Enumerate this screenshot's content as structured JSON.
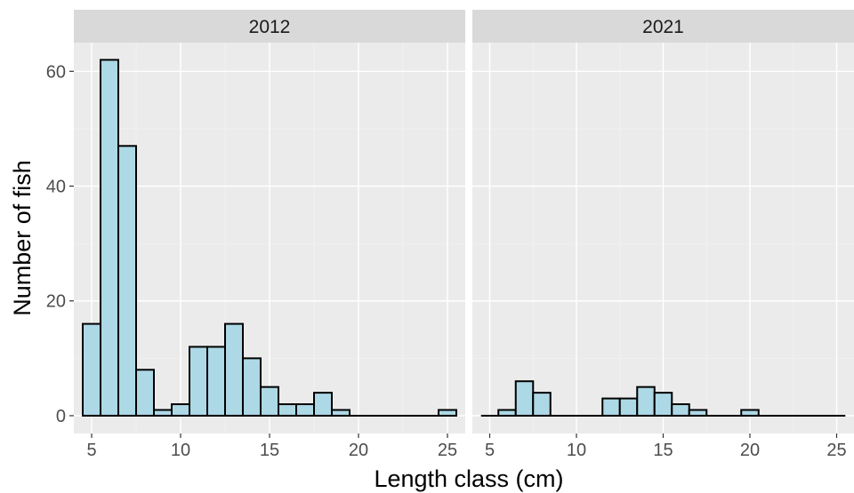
{
  "chart_data": {
    "type": "bar",
    "xlabel": "Length class (cm)",
    "ylabel": "Number of fish",
    "xlim": [
      4,
      26
    ],
    "ylim": [
      -3.1,
      65
    ],
    "x_ticks": [
      5,
      10,
      15,
      20,
      25
    ],
    "y_ticks": [
      0,
      20,
      40,
      60
    ],
    "bin_width": 1,
    "grid": true,
    "colors": {
      "bar_fill": "#add8e6",
      "bar_outline": "#000000",
      "panel_background": "#ebebeb",
      "strip_background": "#d9d9d9"
    },
    "panels": [
      {
        "strip": "2012",
        "bins": [
          {
            "x": 5,
            "count": 16
          },
          {
            "x": 6,
            "count": 62
          },
          {
            "x": 7,
            "count": 47
          },
          {
            "x": 8,
            "count": 8
          },
          {
            "x": 9,
            "count": 1
          },
          {
            "x": 10,
            "count": 2
          },
          {
            "x": 11,
            "count": 12
          },
          {
            "x": 12,
            "count": 12
          },
          {
            "x": 13,
            "count": 16
          },
          {
            "x": 14,
            "count": 10
          },
          {
            "x": 15,
            "count": 5
          },
          {
            "x": 16,
            "count": 2
          },
          {
            "x": 17,
            "count": 2
          },
          {
            "x": 18,
            "count": 4
          },
          {
            "x": 19,
            "count": 1
          },
          {
            "x": 20,
            "count": 0
          },
          {
            "x": 21,
            "count": 0
          },
          {
            "x": 22,
            "count": 0
          },
          {
            "x": 23,
            "count": 0
          },
          {
            "x": 24,
            "count": 0
          },
          {
            "x": 25,
            "count": 1
          }
        ]
      },
      {
        "strip": "2021",
        "bins": [
          {
            "x": 5,
            "count": 0
          },
          {
            "x": 6,
            "count": 1
          },
          {
            "x": 7,
            "count": 6
          },
          {
            "x": 8,
            "count": 4
          },
          {
            "x": 9,
            "count": 0
          },
          {
            "x": 10,
            "count": 0
          },
          {
            "x": 11,
            "count": 0
          },
          {
            "x": 12,
            "count": 3
          },
          {
            "x": 13,
            "count": 3
          },
          {
            "x": 14,
            "count": 5
          },
          {
            "x": 15,
            "count": 4
          },
          {
            "x": 16,
            "count": 2
          },
          {
            "x": 17,
            "count": 1
          },
          {
            "x": 18,
            "count": 0
          },
          {
            "x": 19,
            "count": 0
          },
          {
            "x": 20,
            "count": 1
          },
          {
            "x": 21,
            "count": 0
          },
          {
            "x": 22,
            "count": 0
          },
          {
            "x": 23,
            "count": 0
          },
          {
            "x": 24,
            "count": 0
          },
          {
            "x": 25,
            "count": 0
          }
        ]
      }
    ]
  }
}
